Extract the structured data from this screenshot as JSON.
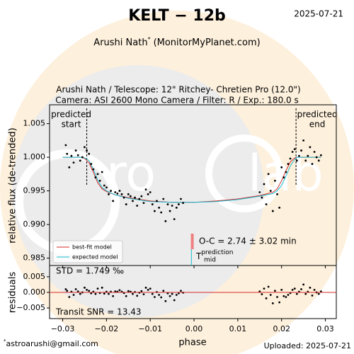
{
  "chart_data": {
    "type": "scatter",
    "title": "KELT − 12b",
    "date": "2025-07-21",
    "author": "Arushi Nath",
    "author_mark": "*",
    "site": "(MonitorMyPlanet.com)",
    "observer_line": "Arushi Nath / Telescope: 12\" Ritchey- Chretien Pro (12.0\")",
    "camera_line": "Camera: ASI 2600 Mono Camera / Filter: R / Exp.: 180.0 s",
    "x_label": "phase",
    "y_label": "relative flux (de-trended)",
    "residual_label": "residuals",
    "email_mark": "*",
    "email": "astroarushi@gmail.com",
    "uploaded": "Uploaded: 2025-07-21",
    "std_text": "STD = 1.749 ‰",
    "snr_text": "Transit SNR = 13.43",
    "oc_text": "O-C = 2.74 ± 3.02 min",
    "tmid_label": {
      "symbol": "T",
      "sub": "mid",
      "sup": "prediction"
    },
    "start_label": [
      "predicted",
      "start"
    ],
    "end_label": [
      "predicted",
      "end"
    ],
    "predicted_start": -0.0245,
    "predicted_end": 0.0233,
    "tmid_fit": -0.0004,
    "tmid_prediction": -0.0006,
    "xlim": [
      -0.033,
      0.0325
    ],
    "ylim": [
      0.9839,
      1.0078
    ],
    "rlim": [
      -0.0084,
      0.0086
    ],
    "xticks": [
      {
        "value": -0.03,
        "label": "−0.03"
      },
      {
        "value": -0.02,
        "label": "−0.02"
      },
      {
        "value": -0.01,
        "label": "−0.01"
      },
      {
        "value": 0,
        "label": "0.00"
      },
      0.01,
      0.02,
      0.03
    ],
    "yticks": [
      0.985,
      {
        "value": 0.99,
        "label": "0.990"
      },
      0.995,
      {
        "value": 1,
        "label": "1.000"
      },
      1.005
    ],
    "rticks": [
      {
        "value": -0.005,
        "label": "−0.005"
      },
      {
        "value": 0,
        "label": "0.000"
      },
      0.005
    ],
    "point_color": "#000000",
    "x": [
      -0.0293,
      -0.029,
      -0.0285,
      -0.028,
      -0.0275,
      -0.027,
      -0.0265,
      -0.026,
      -0.0255,
      -0.025,
      -0.0245,
      -0.024,
      -0.0235,
      -0.023,
      -0.0225,
      -0.022,
      -0.0215,
      -0.021,
      -0.0205,
      -0.02,
      -0.0195,
      -0.019,
      -0.0185,
      -0.018,
      -0.0175,
      -0.017,
      -0.0165,
      -0.016,
      -0.0155,
      -0.015,
      -0.0145,
      -0.014,
      -0.0135,
      -0.013,
      -0.0125,
      -0.012,
      -0.0115,
      -0.011,
      -0.0105,
      -0.01,
      -0.0095,
      -0.009,
      -0.0085,
      -0.008,
      -0.0075,
      -0.007,
      -0.0065,
      -0.006,
      -0.0055,
      -0.005,
      -0.0045,
      -0.004,
      -0.0035,
      -0.003,
      -0.0025,
      0.015,
      0.0155,
      0.016,
      0.0165,
      0.017,
      0.0175,
      0.018,
      0.0185,
      0.019,
      0.0195,
      0.02,
      0.0205,
      0.021,
      0.0215,
      0.022,
      0.0225,
      0.023,
      0.0235,
      0.024,
      0.0245,
      0.025,
      0.0255,
      0.026,
      0.0265,
      0.027,
      0.0275,
      0.028,
      0.0285,
      0.029
    ],
    "flux": [
      1.0018,
      1.0005,
      0.9985,
      1.0002,
      0.9992,
      1.001,
      1.0003,
      0.9995,
      1.0,
      1.0015,
      1.001,
      1.0005,
      0.999,
      0.9982,
      0.997,
      0.9975,
      0.9965,
      0.9978,
      0.9958,
      0.9955,
      0.9945,
      0.995,
      0.9935,
      0.9948,
      0.9946,
      0.995,
      0.9945,
      0.994,
      0.993,
      0.9945,
      0.9942,
      0.9935,
      0.994,
      0.9928,
      0.9938,
      0.9942,
      0.9932,
      0.9952,
      0.9945,
      0.9948,
      0.993,
      0.992,
      0.9935,
      0.9925,
      0.9918,
      0.9938,
      0.9905,
      0.993,
      0.992,
      0.9928,
      0.9908,
      0.9925,
      0.993,
      0.9938,
      0.9932,
      0.9948,
      0.994,
      0.996,
      0.993,
      0.9975,
      0.995,
      0.992,
      0.9965,
      0.9945,
      0.9925,
      0.9985,
      0.997,
      0.9978,
      0.999,
      0.9998,
      1.0008,
      1.0012,
      0.9995,
      1.0002,
      1.001,
      1.0025,
      0.9995,
      1.0002,
      1.0015,
      0.999,
      1.0008,
      1.0,
      0.9995,
      1.0003
    ],
    "residuals": [
      0.001,
      0.0005,
      -0.0015,
      0.0002,
      -0.0008,
      0.001,
      0.0003,
      -0.0005,
      0.0,
      0.0015,
      0.0008,
      0.0005,
      -0.0003,
      0.0002,
      -0.0005,
      0.0012,
      -0.0002,
      0.0015,
      -0.0004,
      0.0002,
      -0.0005,
      0.0002,
      -0.0012,
      0.0003,
      0.0002,
      0.0007,
      0.0002,
      -0.0002,
      -0.0012,
      0.0004,
      0.0002,
      -0.0005,
      0.0001,
      -0.0011,
      -0.0001,
      0.0004,
      -0.0006,
      0.0015,
      0.0008,
      0.0012,
      -0.0005,
      -0.0015,
      0.0001,
      -0.0008,
      -0.0016,
      0.0005,
      -0.0028,
      -0.0003,
      -0.0012,
      -0.0005,
      -0.0025,
      -0.0008,
      -0.0003,
      0.0005,
      -0.0001,
      0.0003,
      -0.0006,
      0.0012,
      -0.0019,
      0.0018,
      -0.0008,
      -0.0035,
      0.0005,
      -0.0015,
      -0.0032,
      0.0008,
      -0.0012,
      -0.0015,
      -0.0008,
      -0.0002,
      0.0008,
      0.0012,
      -0.0005,
      0.0002,
      0.001,
      0.0025,
      -0.0005,
      0.0002,
      0.0015,
      -0.001,
      0.0008,
      0.0,
      -0.0005,
      0.0003
    ],
    "residual_zero": 0,
    "models": [
      {
        "name": "best-fit model",
        "color": "#d62728",
        "x": [
          -0.03,
          -0.0255,
          -0.025,
          -0.024,
          -0.023,
          -0.022,
          -0.021,
          -0.02,
          -0.018,
          -0.015,
          -0.01,
          -0.005,
          0,
          0.005,
          0.01,
          0.015,
          0.018,
          0.019,
          0.02,
          0.021,
          0.022,
          0.023,
          0.0235,
          0.029
        ],
        "values": [
          1.0,
          1.0,
          0.9998,
          0.9992,
          0.9978,
          0.9962,
          0.9953,
          0.9949,
          0.9944,
          0.994,
          0.9935,
          0.9933,
          0.9933,
          0.9935,
          0.9938,
          0.9943,
          0.9948,
          0.9953,
          0.9965,
          0.998,
          0.9993,
          0.9999,
          1.0,
          1.0
        ]
      },
      {
        "name": "expected model",
        "color": "#17becf",
        "x": [
          -0.03,
          -0.0255,
          -0.025,
          -0.024,
          -0.023,
          -0.022,
          -0.021,
          -0.02,
          -0.018,
          -0.015,
          -0.01,
          -0.005,
          0,
          0.005,
          0.01,
          0.015,
          0.018,
          0.019,
          0.02,
          0.021,
          0.022,
          0.023,
          0.0235,
          0.029
        ],
        "values": [
          1.0,
          1.0,
          0.9999,
          0.9995,
          0.9982,
          0.9966,
          0.9955,
          0.995,
          0.9944,
          0.9939,
          0.9934,
          0.9933,
          0.9933,
          0.9934,
          0.9937,
          0.9942,
          0.9946,
          0.995,
          0.9958,
          0.9972,
          0.9987,
          0.9997,
          1.0,
          1.0
        ]
      }
    ],
    "oc_color": "#f08080"
  }
}
